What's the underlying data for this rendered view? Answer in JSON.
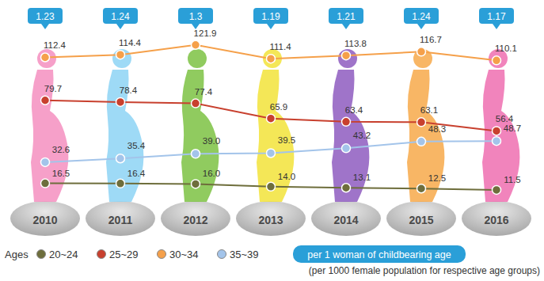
{
  "chart_data": {
    "type": "line",
    "categories": [
      "2010",
      "2011",
      "2012",
      "2013",
      "2014",
      "2015",
      "2016"
    ],
    "series": [
      {
        "name": "20~24",
        "color": "#6e6e3c",
        "values": [
          16.5,
          16.4,
          16.0,
          14.0,
          13.1,
          12.5,
          11.5
        ],
        "value_labels": [
          "16.5",
          "16.4",
          "16.0",
          "14.0",
          "13.1",
          "12.5",
          "11.5"
        ]
      },
      {
        "name": "25~29",
        "color": "#c8402e",
        "values": [
          79.7,
          78.4,
          77.4,
          65.9,
          63.4,
          63.1,
          56.4
        ]
      },
      {
        "name": "30~34",
        "color": "#f5a04a",
        "values": [
          112.4,
          114.4,
          121.9,
          111.4,
          113.8,
          116.7,
          110.1
        ]
      },
      {
        "name": "35~39",
        "color": "#a3c4ea",
        "values": [
          32.6,
          35.4,
          39.0,
          39.5,
          43.2,
          48.3,
          48.7
        ],
        "value_labels": [
          "32.6",
          "35.4",
          "39.0",
          "39.5",
          "43.2",
          "48.3",
          "48.7"
        ]
      }
    ],
    "ylim": [
      0,
      135
    ],
    "tick_labels": false,
    "data_labels": true,
    "marker": "circle",
    "legend": "bottom",
    "legend_title": "Ages",
    "total_fertility_rate": {
      "name": "per 1 woman of childbearing age",
      "color": "#2a9fd8",
      "values": [
        1.23,
        1.24,
        1.3,
        1.19,
        1.21,
        1.24,
        1.17
      ]
    },
    "note": "(per 1000 female population for respective age groups)"
  }
}
